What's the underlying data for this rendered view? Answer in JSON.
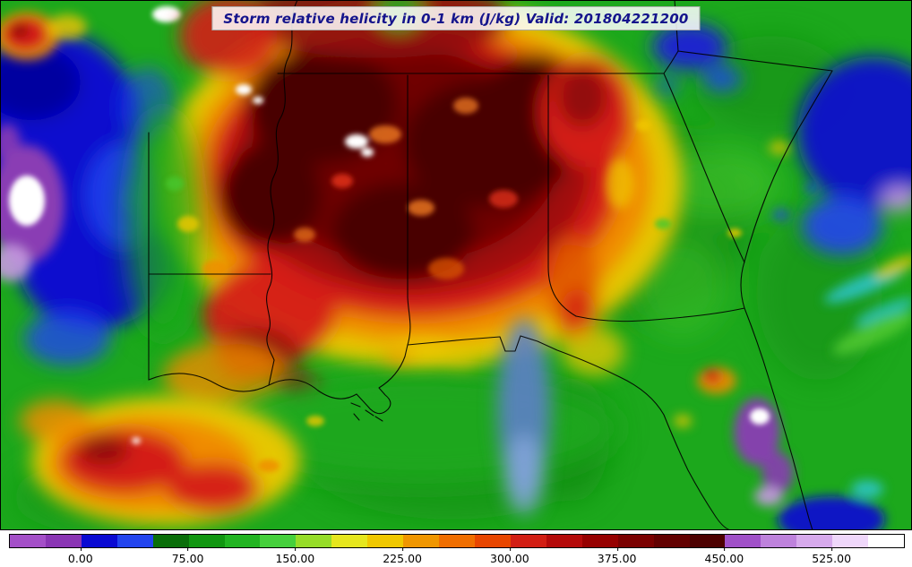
{
  "title": {
    "text": "Storm relative helicity in 0-1 km (J/kg) Valid: 201804221200"
  },
  "colorbar": {
    "ticks": [
      "0.00",
      "75.00",
      "150.00",
      "225.00",
      "300.00",
      "375.00",
      "450.00",
      "525.00"
    ],
    "value_range": [
      -50,
      575
    ],
    "colors": [
      "#a44fc8",
      "#8a35b4",
      "#0a0ad2",
      "#2244ee",
      "#0a6e0a",
      "#119611",
      "#22b422",
      "#46d03c",
      "#96dc28",
      "#e6e61e",
      "#f0c800",
      "#f09600",
      "#f06e00",
      "#e84600",
      "#d21e14",
      "#b40a0a",
      "#960000",
      "#7a0000",
      "#620000",
      "#4c0000",
      "#a050c8",
      "#be82dc",
      "#d7aaec",
      "#efd7fa",
      "#ffffff"
    ]
  },
  "chart_data": {
    "type": "heatmap",
    "title": "Storm relative helicity in 0-1 km (J/kg)",
    "valid_time": "201804221200",
    "units": "J/kg",
    "colorbar_tick_values": [
      0,
      75,
      150,
      225,
      300,
      375,
      450,
      525
    ],
    "value_range": [
      -50,
      575
    ],
    "palette_note": "filled contours: purple (negative) -> blue -> green -> yellow -> orange -> red -> dark red -> violet/white (>450)",
    "field_description": "Broad dark-red maximum (>375 J/kg) centered over Mississippi/Alabama/western Georgia, red-orange lobe along the Louisiana coast, green background elsewhere, blue/purple minima on the far west edge and over the Atlantic, purple patches over central Florida",
    "overlay_features": [
      "state boundaries",
      "Gulf coastline",
      "Atlantic coastline",
      "Mississippi River"
    ]
  },
  "map_colors": {
    "background_green": "#1ca81c",
    "core_dark_red": "#4a0000",
    "low_blue": "#0a0ace",
    "negative_purple": "#8a3cb4"
  }
}
